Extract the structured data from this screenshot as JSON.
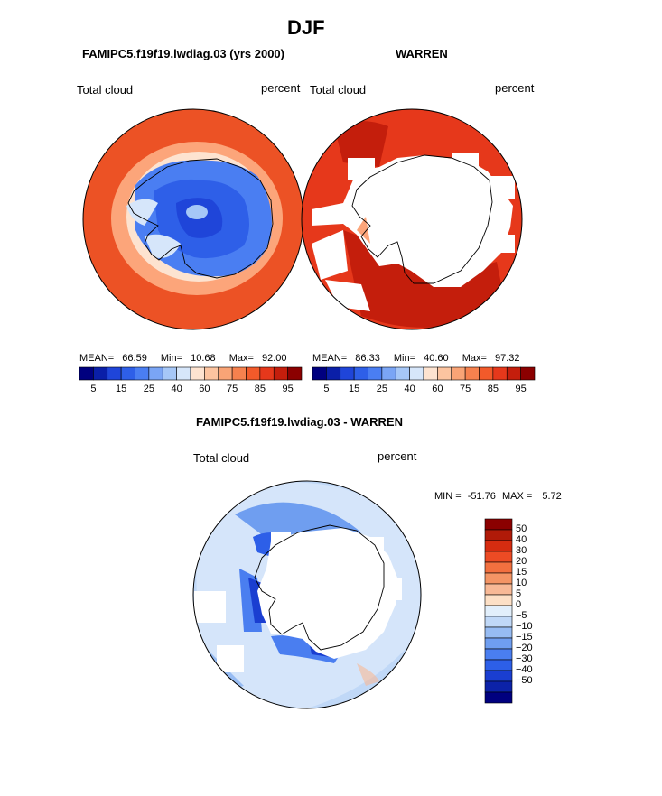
{
  "title": "DJF",
  "panels": [
    {
      "header": "FAMIPC5.f19f19.lwdiag.03 (yrs 2000)",
      "var_label": "Total cloud",
      "units": "percent",
      "stats": {
        "mean_label": "MEAN=",
        "mean": "66.59",
        "min_label": "Min=",
        "min": "10.68",
        "max_label": "Max=",
        "max": "92.00"
      }
    },
    {
      "header": "WARREN",
      "var_label": "Total cloud",
      "units": "percent",
      "stats": {
        "mean_label": "MEAN=",
        "mean": "86.33",
        "min_label": "Min=",
        "min": "40.60",
        "max_label": "Max=",
        "max": "97.32"
      }
    }
  ],
  "abs_colorbar": {
    "colors": [
      "#00007f",
      "#0a1fa8",
      "#1f45d9",
      "#2e5fe8",
      "#4a7ef2",
      "#7aa5f5",
      "#a6c7f7",
      "#d6e6fa",
      "#fde3d0",
      "#fcc4a0",
      "#f9a476",
      "#f6814e",
      "#f25a2a",
      "#e6381b",
      "#c41e0c",
      "#8b0000"
    ],
    "labels": [
      "5",
      "15",
      "25",
      "40",
      "60",
      "75",
      "85",
      "95"
    ]
  },
  "diff": {
    "header": "FAMIPC5.f19f19.lwdiag.03 - WARREN",
    "var_label": "Total cloud",
    "units": "percent",
    "minmax": {
      "min_label": "MIN =",
      "min": "-51.76",
      "max_label": "MAX =",
      "max": "5.72"
    }
  },
  "diff_colorbar": {
    "colors": [
      "#8b0000",
      "#b01a08",
      "#d62c10",
      "#ec4b24",
      "#f2703f",
      "#f49565",
      "#f8b996",
      "#fde0c6",
      "#e2effb",
      "#c0d8f7",
      "#97bcf3",
      "#6f9ef0",
      "#4a7ef0",
      "#2d5fe8",
      "#1a3ed1",
      "#0c22a8",
      "#00007f"
    ],
    "labels": [
      "50",
      "40",
      "30",
      "20",
      "15",
      "10",
      "5",
      "0",
      "−5",
      "−10",
      "−15",
      "−20",
      "−30",
      "−40",
      "−50"
    ]
  }
}
